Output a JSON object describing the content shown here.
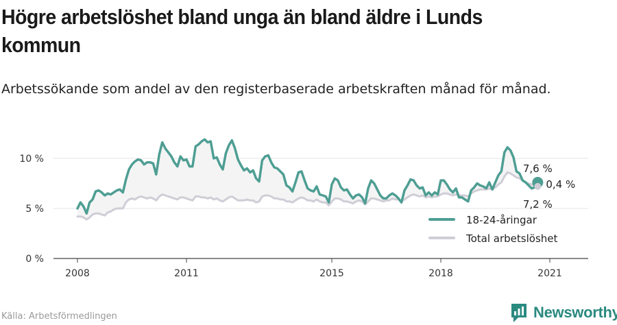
{
  "header": {
    "title": "Högre arbetslöshet bland unga än bland äldre i Lunds kommun",
    "subtitle": "Arbetssökande som andel av den registerbaserade arbetskraften månad för månad."
  },
  "footer": {
    "source": "Källa: Arbetsförmedlingen",
    "brand": "Newsworthy"
  },
  "colors": {
    "youth": "#4e9e93",
    "total": "#cfcdd6",
    "fill": "#f4f4f4",
    "axis": "#444444",
    "grid": "#e6e6e6",
    "brand": "#2a8a80"
  },
  "chart_data": {
    "type": "line",
    "x_ticks": [
      "2008",
      "2011",
      "2015",
      "2018",
      "2021"
    ],
    "y_ticks": [
      "0 %",
      "5 %",
      "10 %"
    ],
    "ylim": [
      0,
      12
    ],
    "legend_position": "bottom-right",
    "series": [
      {
        "name": "18-24-åringar",
        "color": "#4e9e93",
        "start": "2008-01",
        "values": [
          5.0,
          5.6,
          5.2,
          4.5,
          5.6,
          5.9,
          6.7,
          6.8,
          6.6,
          6.3,
          6.5,
          6.4,
          6.6,
          6.8,
          6.9,
          6.6,
          7.9,
          8.9,
          9.4,
          9.7,
          9.9,
          9.8,
          9.4,
          9.6,
          9.6,
          9.5,
          8.4,
          10.4,
          11.6,
          11.0,
          10.6,
          10.2,
          9.6,
          9.2,
          10.2,
          9.8,
          9.9,
          9.2,
          9.2,
          11.2,
          11.4,
          11.7,
          11.9,
          11.6,
          11.7,
          10.0,
          10.1,
          9.4,
          8.9,
          10.5,
          11.3,
          11.8,
          11.0,
          9.9,
          9.3,
          8.8,
          9.0,
          8.6,
          8.8,
          8.0,
          7.7,
          9.8,
          10.2,
          10.3,
          9.6,
          9.1,
          9.0,
          8.7,
          8.4,
          7.3,
          7.1,
          6.7,
          7.6,
          8.6,
          8.7,
          7.8,
          7.0,
          6.8,
          6.7,
          7.2,
          6.4,
          6.3,
          6.2,
          5.6,
          7.4,
          8.0,
          7.8,
          7.1,
          6.8,
          6.9,
          6.4,
          6.0,
          6.3,
          6.4,
          6.1,
          5.5,
          7.0,
          7.8,
          7.5,
          6.9,
          6.3,
          6.0,
          6.0,
          6.3,
          6.5,
          6.3,
          6.0,
          5.6,
          6.8,
          7.3,
          7.9,
          7.8,
          7.3,
          7.0,
          7.1,
          6.3,
          6.6,
          6.3,
          6.6,
          6.4,
          7.8,
          7.8,
          7.4,
          6.9,
          6.6,
          7.0,
          6.1,
          6.1,
          5.9,
          5.7,
          6.8,
          7.1,
          7.5,
          7.3,
          7.2,
          7.0,
          7.6,
          6.9,
          7.6,
          8.3,
          8.7,
          10.6,
          11.1,
          10.8,
          10.1,
          8.7,
          8.5,
          7.8,
          7.6,
          7.3,
          7.0,
          7.1,
          7.6
        ]
      },
      {
        "name": "Total arbetslöshet",
        "color": "#cfcdd6",
        "start": "2008-01",
        "values": [
          4.2,
          4.2,
          4.1,
          3.9,
          4.1,
          4.4,
          4.5,
          4.5,
          4.4,
          4.3,
          4.6,
          4.7,
          4.9,
          5.0,
          5.0,
          5.0,
          5.6,
          5.9,
          6.0,
          5.9,
          6.1,
          6.2,
          6.1,
          6.0,
          6.1,
          6.0,
          5.8,
          6.2,
          6.4,
          6.3,
          6.2,
          6.1,
          6.0,
          5.9,
          6.1,
          6.1,
          6.0,
          5.9,
          5.8,
          6.2,
          6.2,
          6.1,
          6.1,
          6.0,
          6.1,
          5.9,
          6.0,
          5.8,
          5.7,
          5.9,
          6.1,
          6.2,
          6.0,
          5.8,
          5.8,
          5.8,
          5.9,
          5.8,
          5.8,
          5.6,
          5.7,
          6.2,
          6.3,
          6.3,
          6.2,
          6.0,
          6.0,
          5.9,
          5.9,
          5.7,
          5.7,
          5.6,
          5.8,
          6.0,
          6.1,
          6.0,
          5.8,
          5.8,
          5.7,
          5.9,
          5.7,
          5.6,
          5.6,
          5.3,
          5.7,
          6.0,
          6.0,
          5.9,
          5.7,
          5.7,
          5.6,
          5.5,
          5.7,
          5.8,
          5.7,
          5.4,
          5.7,
          6.0,
          6.0,
          5.9,
          5.8,
          5.7,
          5.8,
          5.8,
          6.0,
          5.9,
          5.9,
          5.7,
          5.9,
          6.1,
          6.3,
          6.4,
          6.3,
          6.2,
          6.3,
          6.1,
          6.2,
          6.1,
          6.2,
          6.2,
          6.4,
          6.5,
          6.5,
          6.4,
          6.3,
          6.4,
          6.3,
          6.3,
          6.3,
          6.2,
          6.5,
          6.7,
          6.8,
          6.9,
          6.9,
          6.9,
          7.0,
          6.9,
          7.1,
          7.4,
          7.6,
          8.2,
          8.6,
          8.5,
          8.3,
          8.1,
          8.0,
          7.8,
          7.6,
          7.5,
          7.4,
          7.3,
          7.2
        ]
      }
    ],
    "annotations": {
      "youth_last": "7,6 %",
      "total_last": "7,2 %",
      "difference": "0,4 %"
    }
  }
}
